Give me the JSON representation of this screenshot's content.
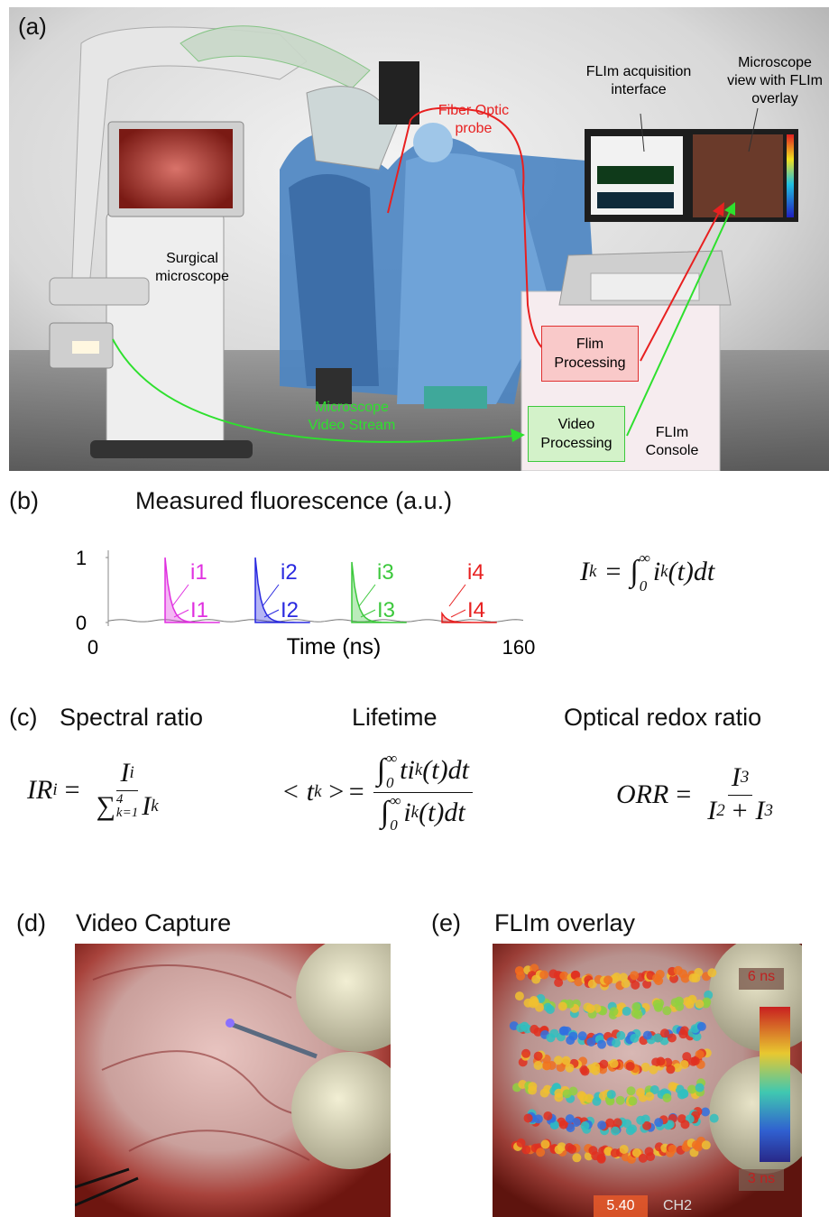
{
  "panel_a": {
    "label": "(a)",
    "surgical_microscope": "Surgical microscope",
    "fiber_optic_probe": "Fiber Optic probe",
    "flim_acquisition_interface": "FLIm acquisition interface",
    "microscope_view": "Microscope view with FLIm overlay",
    "flim_processing": "Flim Processing",
    "video_processing": "Video Processing",
    "flim_console": "FLIm Console",
    "microscope_video_stream": "Microscope Video Stream"
  },
  "panel_b": {
    "label": "(b)",
    "title": "Measured fluorescence (a.u.)",
    "xlabel": "Time (ns)",
    "xlim": [
      0,
      160
    ],
    "xticks": [
      0,
      160
    ],
    "ylim": [
      0,
      1
    ],
    "yticks": [
      0,
      1
    ],
    "channels": [
      {
        "peak": "i1",
        "integral": "I1",
        "color": "#e030e0"
      },
      {
        "peak": "i2",
        "integral": "I2",
        "color": "#2a2ae0"
      },
      {
        "peak": "i3",
        "integral": "I3",
        "color": "#3cc83c"
      },
      {
        "peak": "i4",
        "integral": "I4",
        "color": "#e82020"
      }
    ],
    "equation": {
      "lhs": "I",
      "lhs_sub": "k",
      "eq": "=",
      "int": "∫",
      "int_lower": "0",
      "int_upper": "∞",
      "body": "i",
      "body_sub": "k",
      "tail": "(t)dt"
    }
  },
  "panel_c": {
    "label": "(c)",
    "spectral_ratio": {
      "title": "Spectral ratio",
      "lhs": "IR",
      "lhs_sub": "i",
      "eq": "=",
      "num": "I",
      "num_sub": "i",
      "den_sum": "∑",
      "den_sum_upper": "4",
      "den_sum_lower": "k=1",
      "den": "I",
      "den_sub": "k"
    },
    "lifetime": {
      "title": "Lifetime",
      "lhs": "< t",
      "lhs_sub": "k",
      "lhs_tail": ">",
      "eq": "=",
      "int": "∫",
      "int_lower": "0",
      "int_upper": "∞",
      "num_body": "ti",
      "num_sub": "k",
      "num_tail": "(t)dt",
      "den_body": "i",
      "den_sub": "k",
      "den_tail": "(t)dt"
    },
    "optical_redox_ratio": {
      "title": "Optical redox ratio",
      "lhs": "ORR",
      "eq": "=",
      "num": "I",
      "num_sub": "3",
      "den": "I",
      "den_sub": "2",
      "den_plus": "+ I",
      "den_sub2": "3"
    }
  },
  "panel_d": {
    "label": "(d)",
    "title": "Video Capture"
  },
  "panel_e": {
    "label": "(e)",
    "title": "FLIm overlay",
    "colorbar_max": "6 ns",
    "colorbar_min": "3 ns",
    "readout_value": "5.40",
    "readout_channel": "CH2"
  }
}
